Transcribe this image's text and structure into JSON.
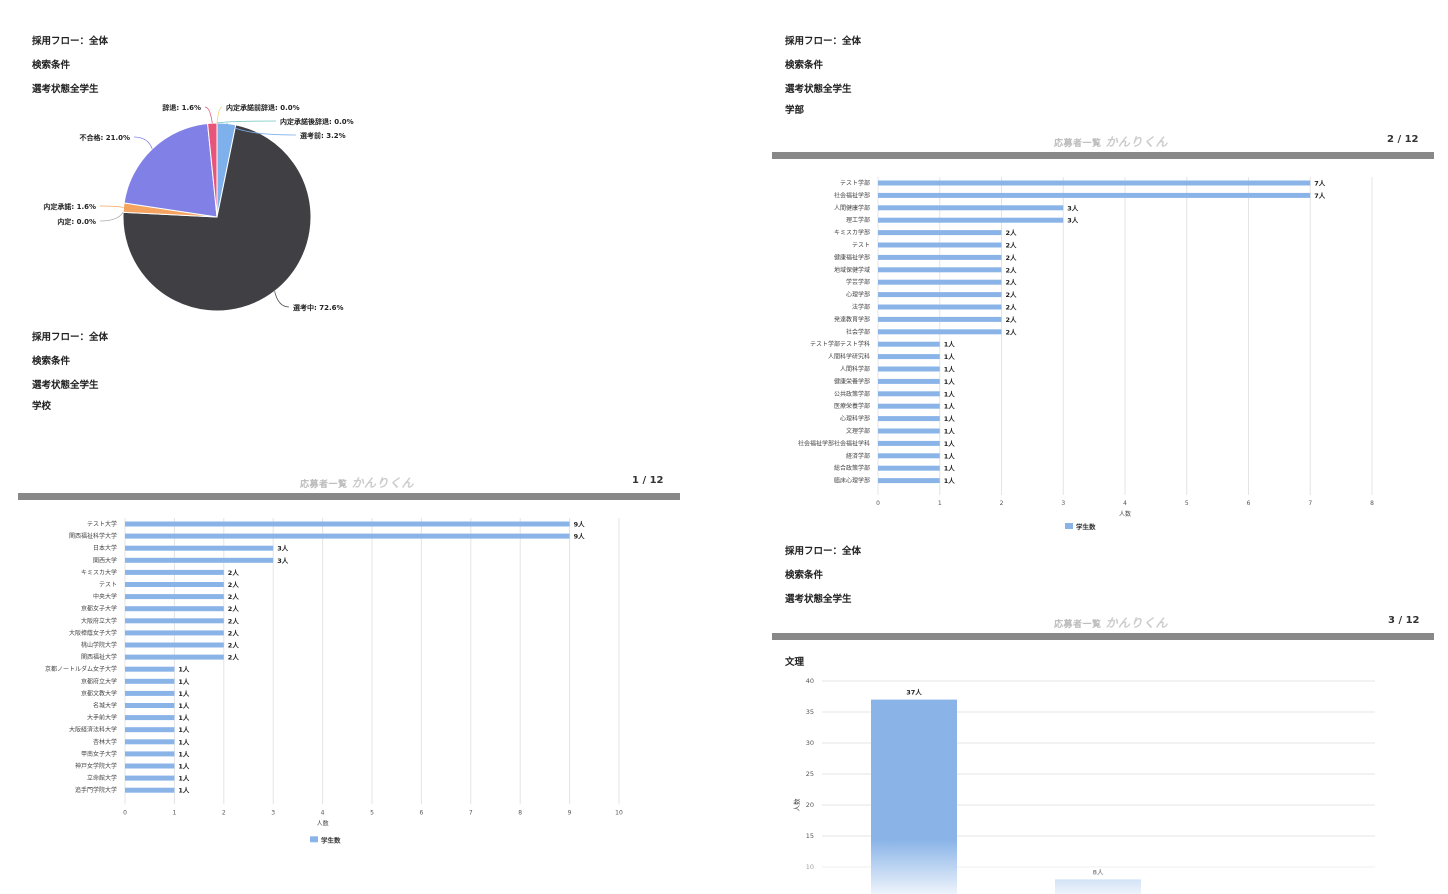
{
  "labels": {
    "flow": "採用フロー：全体",
    "search_conditions": "検索条件",
    "status_all": "選考状態全学生"
  },
  "page1": {
    "school_label": "学校",
    "footer_org": "応募者一覧",
    "footer_brand": "かんりくん",
    "page_number": "1 / 12"
  },
  "page2": {
    "faculty_label": "学部",
    "footer_org": "応募者一覧",
    "footer_brand": "かんりくん",
    "page_number": "2 / 12"
  },
  "page3": {
    "footer_org": "応募者一覧",
    "footer_brand": "かんりくん",
    "page_number": "3 / 12",
    "section_label": "文理"
  },
  "colors": {
    "bar": "#8ab4e8",
    "pie_selecting": "#3f3f44",
    "pie_fail": "#8080e6",
    "pie_decline": "#e8557a",
    "pie_before": "#7eb0ec",
    "pie_offer_accept": "#f4a460",
    "divider": "#888888"
  },
  "chart_data": [
    {
      "type": "pie",
      "slices": [
        {
          "label": "選考中: 72.6%",
          "value": 72.6,
          "color": "#3f3f44"
        },
        {
          "label": "内定: 0.0%",
          "value": 0.0,
          "color": "#aaaaaa"
        },
        {
          "label": "内定承諾: 1.6%",
          "value": 1.6,
          "color": "#f4a460"
        },
        {
          "label": "不合格: 21.0%",
          "value": 21.0,
          "color": "#8080e6"
        },
        {
          "label": "辞退: 1.6%",
          "value": 1.6,
          "color": "#e8557a"
        },
        {
          "label": "内定承諾前辞退: 0.0%",
          "value": 0.0,
          "color": "#f2d36b"
        },
        {
          "label": "内定承諾後辞退: 0.0%",
          "value": 0.0,
          "color": "#6cc5c0"
        },
        {
          "label": "選考前: 3.2%",
          "value": 3.2,
          "color": "#7eb0ec"
        }
      ]
    },
    {
      "type": "bar",
      "orientation": "horizontal",
      "categories": [
        "テスト大学",
        "関西福祉科学大学",
        "日本大学",
        "関西大学",
        "キミスカ大学",
        "テスト",
        "中央大学",
        "京都女子大学",
        "大阪府立大学",
        "大阪樟蔭女子大学",
        "桃山学院大学",
        "関西福祉大学",
        "京都ノートルダム女子大学",
        "京都府立大学",
        "京都文教大学",
        "名城大学",
        "大手前大学",
        "大阪経済法科大学",
        "杏林大学",
        "甲南女子大学",
        "神戸女学院大学",
        "立命館大学",
        "追手門学院大学"
      ],
      "values": [
        9,
        9,
        3,
        3,
        2,
        2,
        2,
        2,
        2,
        2,
        2,
        2,
        1,
        1,
        1,
        1,
        1,
        1,
        1,
        1,
        1,
        1,
        1
      ],
      "data_labels": [
        "9人",
        "9人",
        "3人",
        "3人",
        "2人",
        "2人",
        "2人",
        "2人",
        "2人",
        "2人",
        "2人",
        "2人",
        "1人",
        "1人",
        "1人",
        "1人",
        "1人",
        "1人",
        "1人",
        "1人",
        "1人",
        "1人",
        "1人"
      ],
      "xlabel": "人数",
      "xlim": [
        0,
        10
      ],
      "xticks": [
        "0",
        "1",
        "2",
        "3",
        "4",
        "5",
        "6",
        "7",
        "8",
        "9",
        "10"
      ],
      "legend": "学生数",
      "grid": true
    },
    {
      "type": "bar",
      "orientation": "horizontal",
      "categories": [
        "テスト学部",
        "社会福祉学部",
        "人間健康学部",
        "理工学部",
        "キミスカ学部",
        "テスト",
        "健康福祉学部",
        "地域保健学域",
        "学芸学部",
        "心理学部",
        "法学部",
        "発達教育学部",
        "社会学部",
        "テスト学部テスト学科",
        "人間科学研究科",
        "人間科学部",
        "健康栄養学部",
        "公共政策学部",
        "医療栄養学部",
        "心理科学部",
        "文理学部",
        "社会福祉学部社会福祉学科",
        "経済学部",
        "総合政策学部",
        "臨床心理学部"
      ],
      "values": [
        7,
        7,
        3,
        3,
        2,
        2,
        2,
        2,
        2,
        2,
        2,
        2,
        2,
        1,
        1,
        1,
        1,
        1,
        1,
        1,
        1,
        1,
        1,
        1,
        1
      ],
      "data_labels": [
        "7人",
        "7人",
        "3人",
        "3人",
        "2人",
        "2人",
        "2人",
        "2人",
        "2人",
        "2人",
        "2人",
        "2人",
        "2人",
        "1人",
        "1人",
        "1人",
        "1人",
        "1人",
        "1人",
        "1人",
        "1人",
        "1人",
        "1人",
        "1人",
        "1人"
      ],
      "xlabel": "人数",
      "xlim": [
        0,
        8
      ],
      "xticks": [
        "0",
        "1",
        "2",
        "3",
        "4",
        "5",
        "6",
        "7",
        "8"
      ],
      "legend": "学生数",
      "grid": true
    },
    {
      "type": "bar",
      "orientation": "vertical",
      "categories": [
        "",
        ""
      ],
      "values": [
        37,
        8
      ],
      "data_labels": [
        "37人",
        "8人"
      ],
      "ylabel": "人数",
      "ylim": [
        10,
        40
      ],
      "yticks": [
        "40",
        "35",
        "30",
        "25",
        "20",
        "15",
        "10"
      ],
      "grid": true
    }
  ]
}
